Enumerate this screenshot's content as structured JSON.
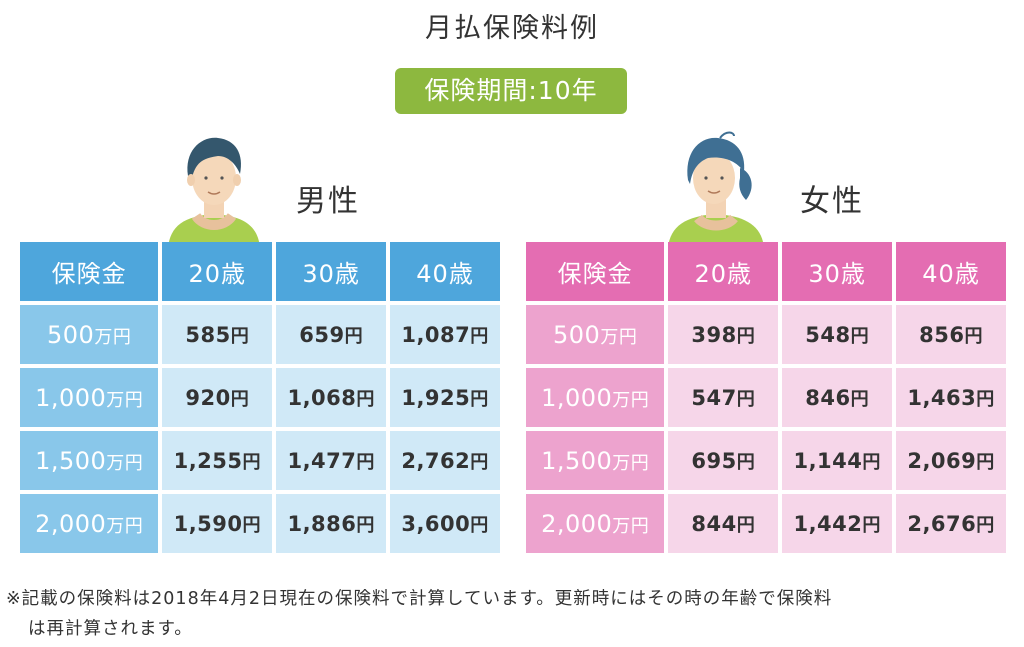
{
  "title": "月払保険料例",
  "period_badge": "保険期間:10年",
  "colors": {
    "badge": "#8db83f",
    "male_header": "#4ea6dc",
    "male_amount": "#89c7ea",
    "male_cell": "#d0e9f7",
    "female_header": "#e46db2",
    "female_amount": "#eda3ce",
    "female_cell": "#f6d6e9"
  },
  "male": {
    "label": "男性",
    "avatar_icon": "man-avatar-icon",
    "headers": [
      "保険金",
      "20歳",
      "30歳",
      "40歳"
    ],
    "rows": [
      {
        "amount": "500",
        "unit": "万円",
        "cells": [
          {
            "v": "585",
            "u": "円"
          },
          {
            "v": "659",
            "u": "円"
          },
          {
            "v": "1,087",
            "u": "円"
          }
        ]
      },
      {
        "amount": "1,000",
        "unit": "万円",
        "cells": [
          {
            "v": "920",
            "u": "円"
          },
          {
            "v": "1,068",
            "u": "円"
          },
          {
            "v": "1,925",
            "u": "円"
          }
        ]
      },
      {
        "amount": "1,500",
        "unit": "万円",
        "cells": [
          {
            "v": "1,255",
            "u": "円"
          },
          {
            "v": "1,477",
            "u": "円"
          },
          {
            "v": "2,762",
            "u": "円"
          }
        ]
      },
      {
        "amount": "2,000",
        "unit": "万円",
        "cells": [
          {
            "v": "1,590",
            "u": "円"
          },
          {
            "v": "1,886",
            "u": "円"
          },
          {
            "v": "3,600",
            "u": "円"
          }
        ]
      }
    ]
  },
  "female": {
    "label": "女性",
    "avatar_icon": "woman-avatar-icon",
    "headers": [
      "保険金",
      "20歳",
      "30歳",
      "40歳"
    ],
    "rows": [
      {
        "amount": "500",
        "unit": "万円",
        "cells": [
          {
            "v": "398",
            "u": "円"
          },
          {
            "v": "548",
            "u": "円"
          },
          {
            "v": "856",
            "u": "円"
          }
        ]
      },
      {
        "amount": "1,000",
        "unit": "万円",
        "cells": [
          {
            "v": "547",
            "u": "円"
          },
          {
            "v": "846",
            "u": "円"
          },
          {
            "v": "1,463",
            "u": "円"
          }
        ]
      },
      {
        "amount": "1,500",
        "unit": "万円",
        "cells": [
          {
            "v": "695",
            "u": "円"
          },
          {
            "v": "1,144",
            "u": "円"
          },
          {
            "v": "2,069",
            "u": "円"
          }
        ]
      },
      {
        "amount": "2,000",
        "unit": "万円",
        "cells": [
          {
            "v": "844",
            "u": "円"
          },
          {
            "v": "1,442",
            "u": "円"
          },
          {
            "v": "2,676",
            "u": "円"
          }
        ]
      }
    ]
  },
  "footnote": {
    "line1": "※記載の保険料は2018年4月2日現在の保険料で計算しています。更新時にはその時の年齢で保険料",
    "line2": "は再計算されます。"
  }
}
